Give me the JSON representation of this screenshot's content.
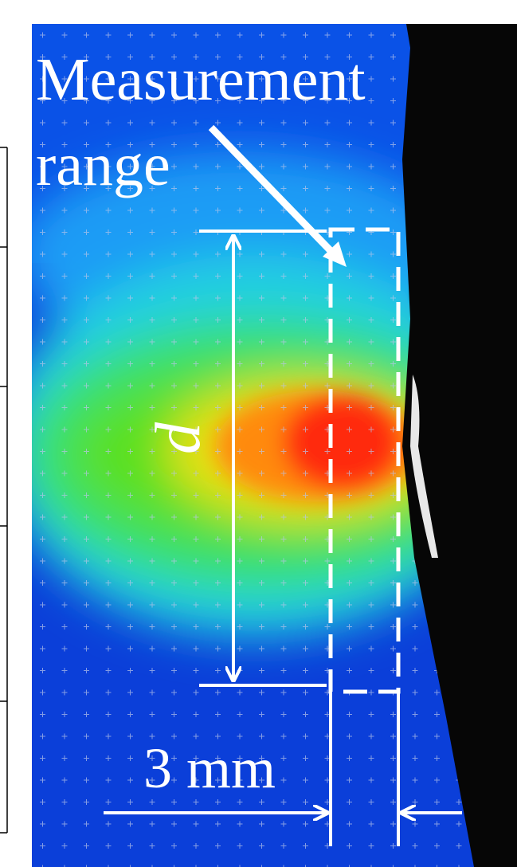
{
  "annotation": {
    "line1": "Measurement",
    "line2": "range"
  },
  "dimension_label": "d",
  "width_label": "3 mm"
}
